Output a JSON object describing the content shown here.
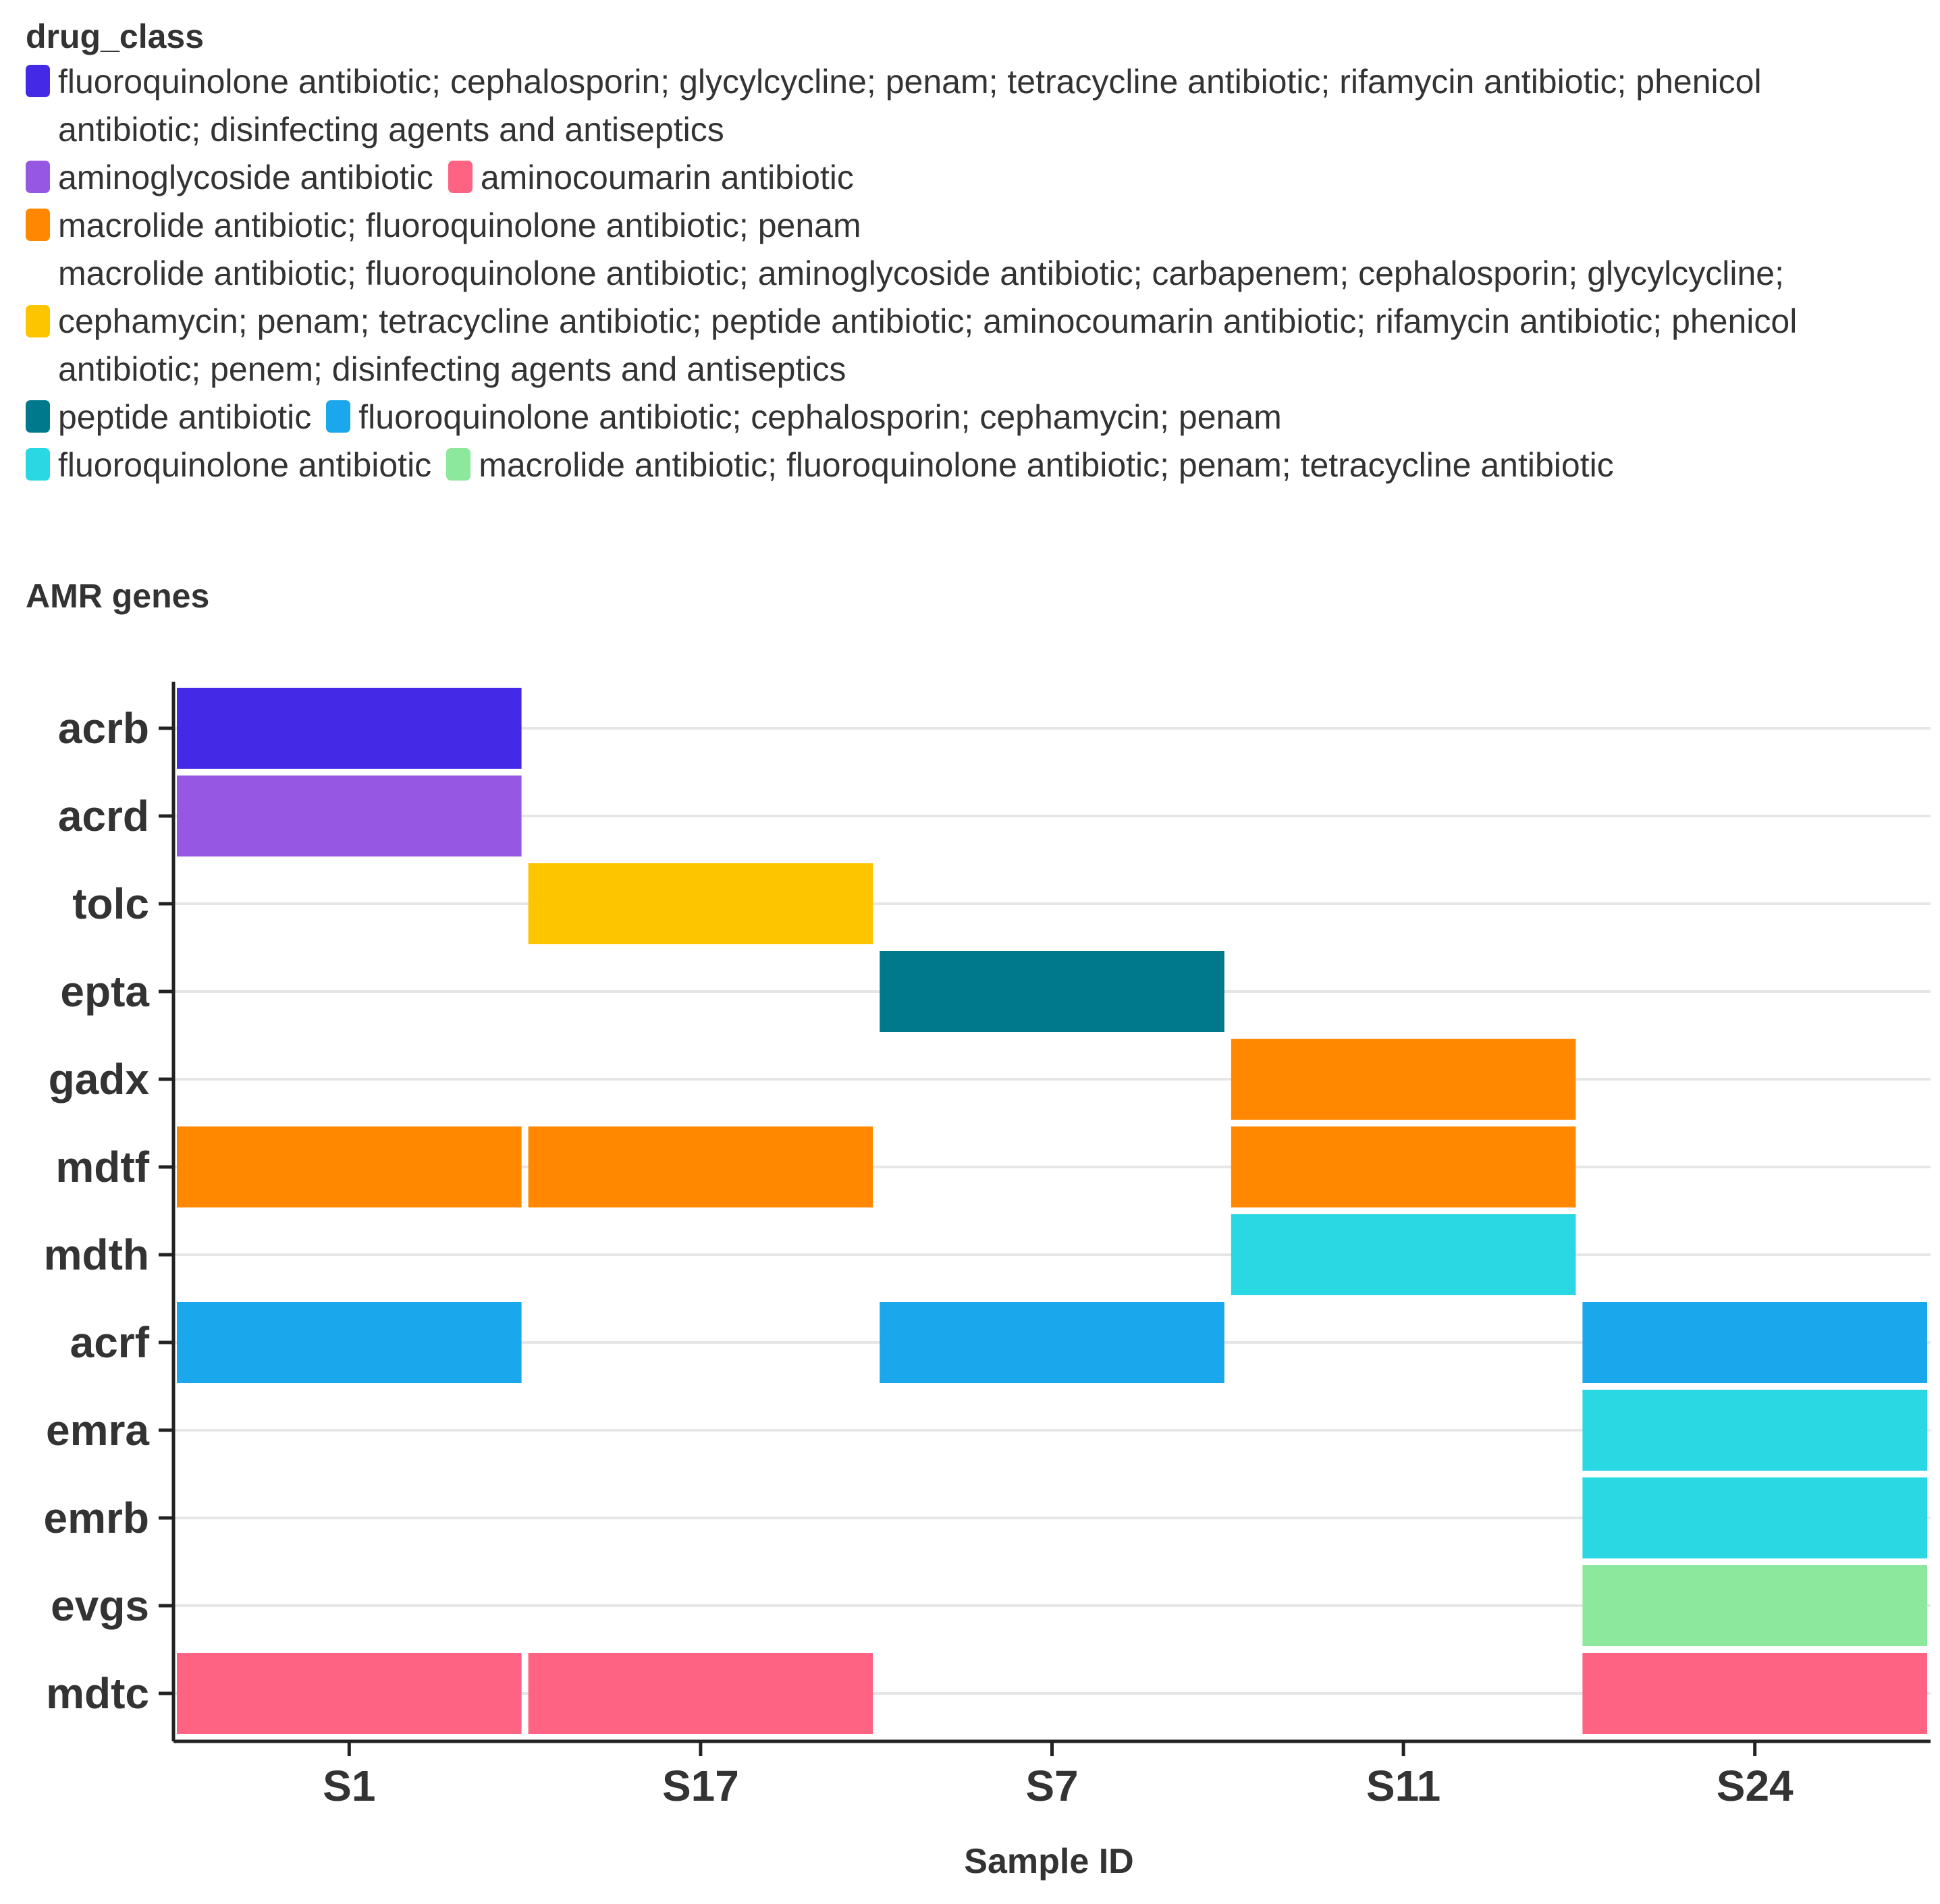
{
  "chart_data": {
    "type": "heatmap",
    "title": "AMR genes",
    "xlabel": "Sample ID",
    "ylabel": "AMR genes",
    "legend_title": "drug_class",
    "legend_position": "top",
    "grid": true,
    "x_categories": [
      "S1",
      "S17",
      "S7",
      "S11",
      "S24"
    ],
    "y_categories": [
      "acrb",
      "acrd",
      "tolc",
      "epta",
      "gadx",
      "mdtf",
      "mdth",
      "acrf",
      "emra",
      "emrb",
      "evgs",
      "mdtc"
    ],
    "classes": [
      {
        "key": "A",
        "label": "fluoroquinolone antibiotic; cephalosporin; glycylcycline; penam; tetracycline antibiotic; rifamycin antibiotic; phenicol antibiotic; disinfecting agents and antiseptics",
        "color": "#4429E6"
      },
      {
        "key": "B",
        "label": "aminoglycoside antibiotic",
        "color": "#9657E3"
      },
      {
        "key": "C",
        "label": "aminocoumarin antibiotic",
        "color": "#FF6384"
      },
      {
        "key": "D",
        "label": "macrolide antibiotic; fluoroquinolone antibiotic; penam",
        "color": "#FF8800"
      },
      {
        "key": "E",
        "label": "macrolide antibiotic; fluoroquinolone antibiotic; aminoglycoside antibiotic; carbapenem; cephalosporin; glycylcycline; cephamycin; penam; tetracycline antibiotic; peptide antibiotic; aminocoumarin antibiotic; rifamycin antibiotic; phenicol antibiotic; penem; disinfecting agents and antiseptics",
        "color": "#FDC500"
      },
      {
        "key": "F",
        "label": "peptide antibiotic",
        "color": "#00798C"
      },
      {
        "key": "G",
        "label": "fluoroquinolone antibiotic; cephalosporin; cephamycin; penam",
        "color": "#1AA7EC"
      },
      {
        "key": "H",
        "label": "fluoroquinolone antibiotic",
        "color": "#29D8E3"
      },
      {
        "key": "I",
        "label": "macrolide antibiotic; fluoroquinolone antibiotic; penam; tetracycline antibiotic",
        "color": "#8BE89C"
      }
    ],
    "cells": [
      {
        "sample": "S1",
        "gene": "acrb",
        "class": "A"
      },
      {
        "sample": "S1",
        "gene": "acrd",
        "class": "B"
      },
      {
        "sample": "S1",
        "gene": "mdtf",
        "class": "D"
      },
      {
        "sample": "S1",
        "gene": "acrf",
        "class": "G"
      },
      {
        "sample": "S1",
        "gene": "mdtc",
        "class": "C"
      },
      {
        "sample": "S17",
        "gene": "tolc",
        "class": "E"
      },
      {
        "sample": "S17",
        "gene": "mdtf",
        "class": "D"
      },
      {
        "sample": "S17",
        "gene": "mdtc",
        "class": "C"
      },
      {
        "sample": "S7",
        "gene": "epta",
        "class": "F"
      },
      {
        "sample": "S7",
        "gene": "acrf",
        "class": "G"
      },
      {
        "sample": "S11",
        "gene": "gadx",
        "class": "D"
      },
      {
        "sample": "S11",
        "gene": "mdtf",
        "class": "D"
      },
      {
        "sample": "S11",
        "gene": "mdth",
        "class": "H"
      },
      {
        "sample": "S24",
        "gene": "acrf",
        "class": "G"
      },
      {
        "sample": "S24",
        "gene": "emra",
        "class": "H"
      },
      {
        "sample": "S24",
        "gene": "emrb",
        "class": "H"
      },
      {
        "sample": "S24",
        "gene": "evgs",
        "class": "I"
      },
      {
        "sample": "S24",
        "gene": "mdtc",
        "class": "C"
      }
    ]
  }
}
